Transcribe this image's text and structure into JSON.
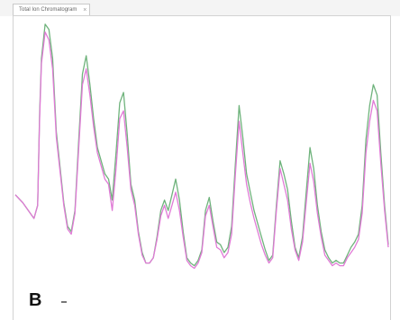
{
  "window": {
    "tab_label": "Total Ion Chromatogram",
    "tab_close": "×"
  },
  "panel": {
    "letter": "B"
  },
  "colors": {
    "series_green": "#6fb37c",
    "series_magenta": "#e07ad6",
    "frame": "#d2d2d2"
  },
  "chart_data": {
    "type": "line",
    "title": "",
    "xlabel": "",
    "ylabel": "",
    "grid": false,
    "legend": "none",
    "xlim": [
      0,
      100
    ],
    "ylim": [
      0,
      100
    ],
    "x": [
      0,
      2,
      4,
      5,
      6,
      6.5,
      7,
      8,
      9,
      10,
      11,
      13,
      14,
      15,
      16,
      17,
      18,
      19,
      20,
      21,
      22,
      24,
      25,
      26,
      27,
      28,
      29,
      30,
      31,
      32,
      33,
      34,
      35,
      36,
      37,
      38,
      39,
      40,
      41,
      42,
      43,
      44,
      45,
      46,
      47,
      48,
      49,
      50,
      51,
      52,
      53,
      54,
      55,
      56,
      57,
      58,
      59,
      60,
      61,
      62,
      63,
      64,
      65,
      66,
      67,
      68,
      69,
      70,
      71,
      72,
      73,
      74,
      75,
      76,
      77,
      78,
      79,
      80,
      81,
      82,
      83,
      84,
      85,
      86,
      87,
      88,
      89,
      90,
      91,
      92,
      93,
      94,
      95,
      96,
      97,
      98,
      99,
      100
    ],
    "series": [
      {
        "color": "#6fb37c",
        "values": [
          34,
          31,
          27,
          25,
          30,
          64,
          86,
          99,
          97,
          86,
          58,
          31,
          22,
          20,
          28,
          55,
          80,
          87,
          76,
          63,
          52,
          42,
          40,
          32,
          50,
          69,
          73,
          57,
          38,
          32,
          20,
          12,
          8,
          8,
          10,
          18,
          28,
          32,
          28,
          34,
          40,
          32,
          20,
          10,
          8,
          7,
          9,
          13,
          28,
          33,
          24,
          16,
          15,
          12,
          14,
          22,
          46,
          68,
          56,
          42,
          35,
          28,
          23,
          18,
          13,
          9,
          11,
          30,
          47,
          42,
          36,
          24,
          14,
          10,
          18,
          35,
          52,
          44,
          30,
          20,
          13,
          10,
          8,
          9,
          8,
          8,
          11,
          14,
          16,
          19,
          30,
          55,
          68,
          76,
          72,
          50,
          30,
          15
        ]
      },
      {
        "color": "#e07ad6",
        "values": [
          34,
          31,
          27,
          25,
          30,
          62,
          84,
          96,
          93,
          82,
          56,
          30,
          21,
          19,
          27,
          52,
          76,
          82,
          72,
          60,
          50,
          40,
          38,
          28,
          44,
          63,
          66,
          52,
          36,
          30,
          19,
          11,
          8,
          8,
          10,
          17,
          26,
          30,
          25,
          30,
          35,
          28,
          18,
          9,
          7,
          6,
          8,
          12,
          26,
          30,
          22,
          14,
          13,
          10,
          12,
          19,
          42,
          62,
          50,
          38,
          31,
          25,
          20,
          15,
          11,
          8,
          10,
          28,
          44,
          38,
          32,
          21,
          13,
          9,
          16,
          31,
          46,
          39,
          27,
          18,
          11,
          9,
          7,
          8,
          7,
          7,
          10,
          12,
          14,
          17,
          27,
          50,
          62,
          70,
          66,
          46,
          28,
          14
        ]
      }
    ]
  }
}
